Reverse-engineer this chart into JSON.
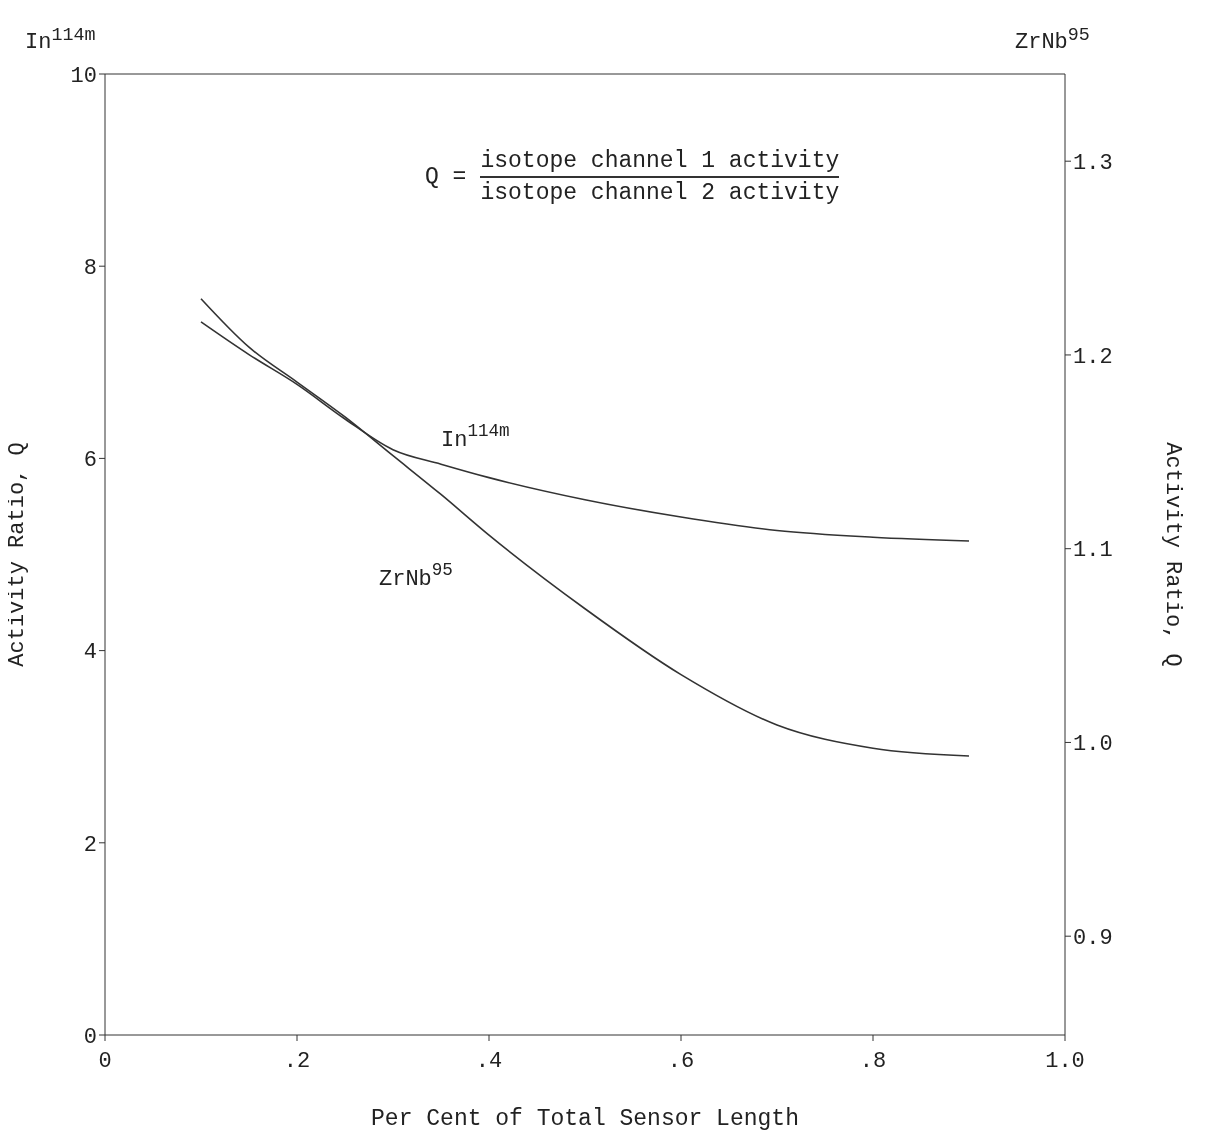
{
  "chart_data": {
    "type": "line",
    "xlabel": "Per Cent of Total Sensor Length",
    "ylabel": "Activity Ratio, Q",
    "y2label": "Activity Ratio, Q",
    "annotations": [
      "In$^{114m}$",
      "ZrNb$^{95}$",
      "Q =",
      "isotope channel 1 activity",
      "isotope channel 2 activity"
    ],
    "x": [
      0.1,
      0.15,
      0.2,
      0.25,
      0.3,
      0.35,
      0.4,
      0.5,
      0.6,
      0.7,
      0.8,
      0.9
    ],
    "series": [
      {
        "name": "In$^{114m}$",
        "color": "#333333",
        "values": [
          7.42,
          7.08,
          6.77,
          6.41,
          6.09,
          5.94,
          5.8,
          5.57,
          5.39,
          5.25,
          5.18,
          5.14
        ]
      },
      {
        "name": "ZrNb$^{95}$",
        "color": "#333333",
        "axis": "y2",
        "values": [
          1.229,
          1.204,
          1.186,
          1.168,
          1.148,
          1.128,
          1.107,
          1.069,
          1.035,
          1.009,
          0.997,
          0.993
        ]
      }
    ],
    "xlim": [
      0,
      1.0
    ],
    "xticks": [
      0,
      {
        "value": 0.2,
        "label": ".2"
      },
      {
        "value": 0.4,
        "label": ".4"
      },
      {
        "value": 0.6,
        "label": ".6"
      },
      {
        "value": 0.8,
        "label": ".8"
      },
      {
        "value": 1.0,
        "label": "1.0"
      }
    ],
    "ylim": [
      0,
      10
    ],
    "yticks": [
      0,
      2,
      4,
      6,
      8,
      10
    ],
    "y2lim": [
      0.849,
      1.345
    ],
    "y2ticks": [
      0.9,
      {
        "value": 1.0,
        "label": "1.0"
      },
      1.1,
      1.2,
      1.3
    ],
    "marker": "none",
    "line_style": "solid"
  }
}
